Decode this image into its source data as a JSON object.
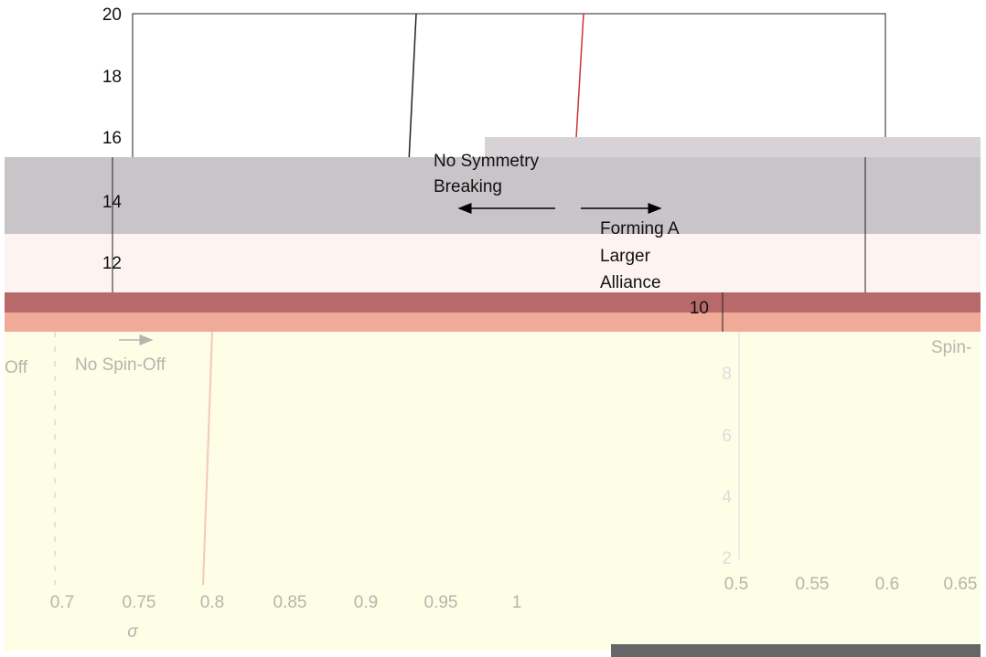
{
  "top_plot": {
    "yticks": [
      "20",
      "18",
      "16",
      "14",
      "12",
      "10"
    ],
    "annotations": {
      "left": [
        "No Symmetry",
        "Breaking"
      ],
      "right": [
        "Forming A",
        "Larger",
        "Alliance"
      ]
    }
  },
  "bottom_plot": {
    "annotations": {
      "spin_off": "No Spin-Off",
      "cut_left": "Off",
      "cut_right": "Spin-"
    },
    "xticks": [
      "0.7",
      "0.75",
      "0.8",
      "0.85",
      "0.9",
      "0.95",
      "1"
    ],
    "xlabel": "σ"
  },
  "right_plot": {
    "yticks": [
      "8",
      "6",
      "4",
      "2"
    ],
    "xticks": [
      "0.5",
      "0.55",
      "0.6",
      "0.65"
    ]
  }
}
